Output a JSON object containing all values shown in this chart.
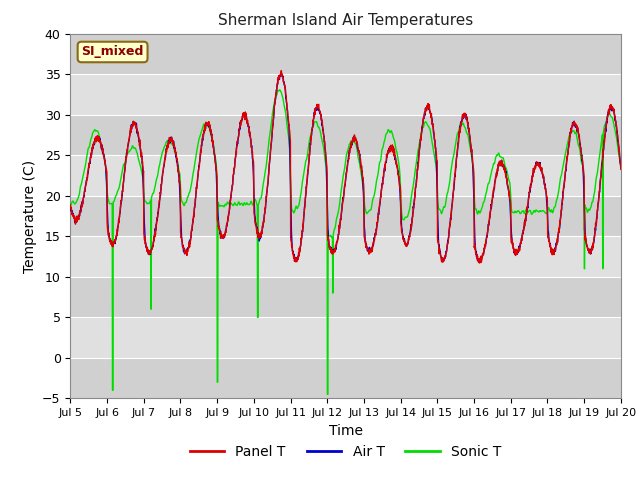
{
  "title": "Sherman Island Air Temperatures",
  "xlabel": "Time",
  "ylabel": "Temperature (C)",
  "ylim": [
    -5,
    40
  ],
  "yticks": [
    -5,
    0,
    5,
    10,
    15,
    20,
    25,
    30,
    35,
    40
  ],
  "xtick_labels": [
    "Jul 5",
    "Jul 6",
    "Jul 7",
    "Jul 8",
    "Jul 9",
    "Jul 10",
    "Jul 11",
    "Jul 12",
    "Jul 13",
    "Jul 14",
    "Jul 15",
    "Jul 16",
    "Jul 17",
    "Jul 18",
    "Jul 19",
    "Jul 20"
  ],
  "annotation_text": "SI_mixed",
  "bg_color": "#dcdcdc",
  "legend_entries": [
    "Panel T",
    "Air T",
    "Sonic T"
  ],
  "panel_t_color": "#dd0000",
  "air_t_color": "#0000cc",
  "sonic_t_color": "#00dd00"
}
